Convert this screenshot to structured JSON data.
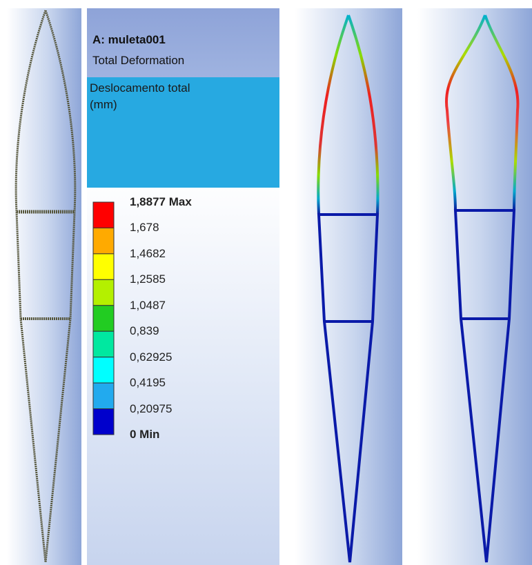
{
  "header": {
    "title": "A: muleta001",
    "subtitle": "Total Deformation"
  },
  "result_label": {
    "lines": [
      "Deslocamento total",
      "(mm)"
    ]
  },
  "legend": {
    "labels": [
      "1,8877 Max",
      "1,678",
      "1,4682",
      "1,2585",
      "1,0487",
      "0,839",
      "0,62925",
      "0,4195",
      "0,20975",
      "0 Min"
    ],
    "colors": [
      "#ff0000",
      "#ffaa00",
      "#ffff00",
      "#b4f000",
      "#22cc22",
      "#00e8a0",
      "#00ffff",
      "#22aaee",
      "#0000cc"
    ]
  }
}
